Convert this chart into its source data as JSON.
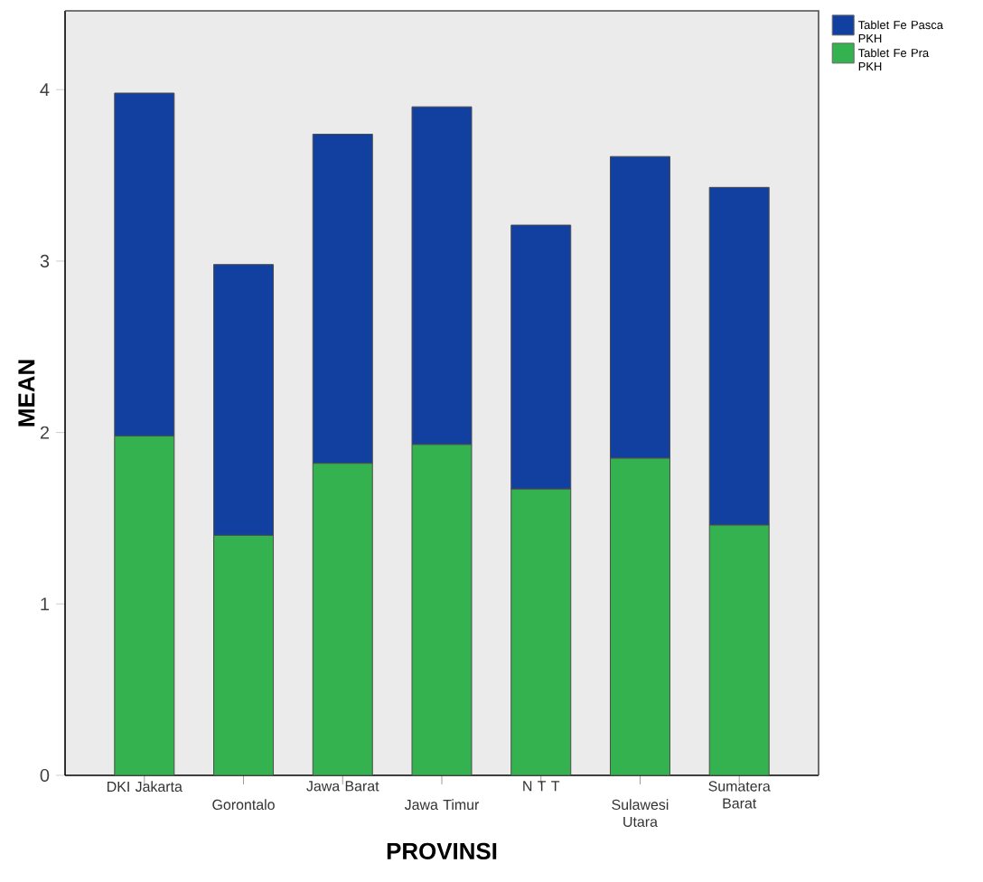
{
  "chart_data": {
    "type": "bar",
    "stacked": true,
    "xlabel": "PROVINSI",
    "ylabel": "MEAN",
    "categories": [
      "DKI Jakarta",
      "Gorontalo",
      "Jawa Barat",
      "Jawa Timur",
      "N T T",
      "Sulawesi Utara",
      "Sumatera Barat"
    ],
    "series": [
      {
        "name": "Tablet Fe Pra PKH",
        "color": "#33b24f",
        "values": [
          1.98,
          1.4,
          1.82,
          1.93,
          1.67,
          1.85,
          1.46
        ]
      },
      {
        "name": "Tablet Fe Pasca PKH",
        "color": "#1240a0",
        "values": [
          2.0,
          1.58,
          1.92,
          1.97,
          1.54,
          1.76,
          1.97
        ]
      }
    ],
    "ylim": [
      0,
      4.46
    ],
    "yticks": [
      0,
      1,
      2,
      3,
      4
    ],
    "grid": false,
    "legend": "top right"
  }
}
